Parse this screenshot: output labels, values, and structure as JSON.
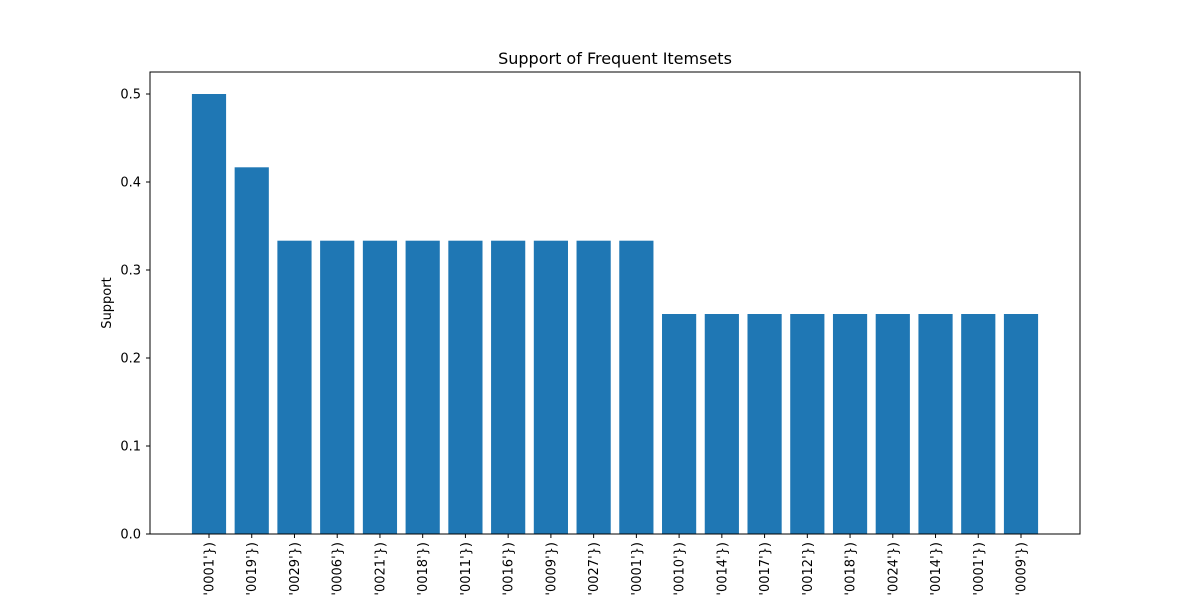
{
  "chart_data": {
    "type": "bar",
    "title": "Support of Frequent Itemsets",
    "xlabel": "",
    "ylabel": "Support",
    "ylim": [
      0,
      0.525
    ],
    "yticks": [
      "0.0",
      "0.1",
      "0.2",
      "0.3",
      "0.4",
      "0.5"
    ],
    "ytick_values": [
      0,
      0.1,
      0.2,
      0.3,
      0.4,
      0.5
    ],
    "categories": [
      "'0001'})",
      "'0019'})",
      "'0029'})",
      "'0006'})",
      "'0021'})",
      "'0018'})",
      "'0011'})",
      "'0016'})",
      "'0009'})",
      "'0027'})",
      "'0001'})",
      "'0010'})",
      "'0014'})",
      "'0017'})",
      "'0012'})",
      "'0018'})",
      "'0024'})",
      "'0014'})",
      "'0001'})",
      "'0009'})"
    ],
    "values": [
      0.5,
      0.4167,
      0.3333,
      0.3333,
      0.3333,
      0.3333,
      0.3333,
      0.3333,
      0.3333,
      0.3333,
      0.3333,
      0.25,
      0.25,
      0.25,
      0.25,
      0.25,
      0.25,
      0.25,
      0.25,
      0.25
    ],
    "bar_color": "#1f77b4",
    "grid": false,
    "legend": "none"
  }
}
